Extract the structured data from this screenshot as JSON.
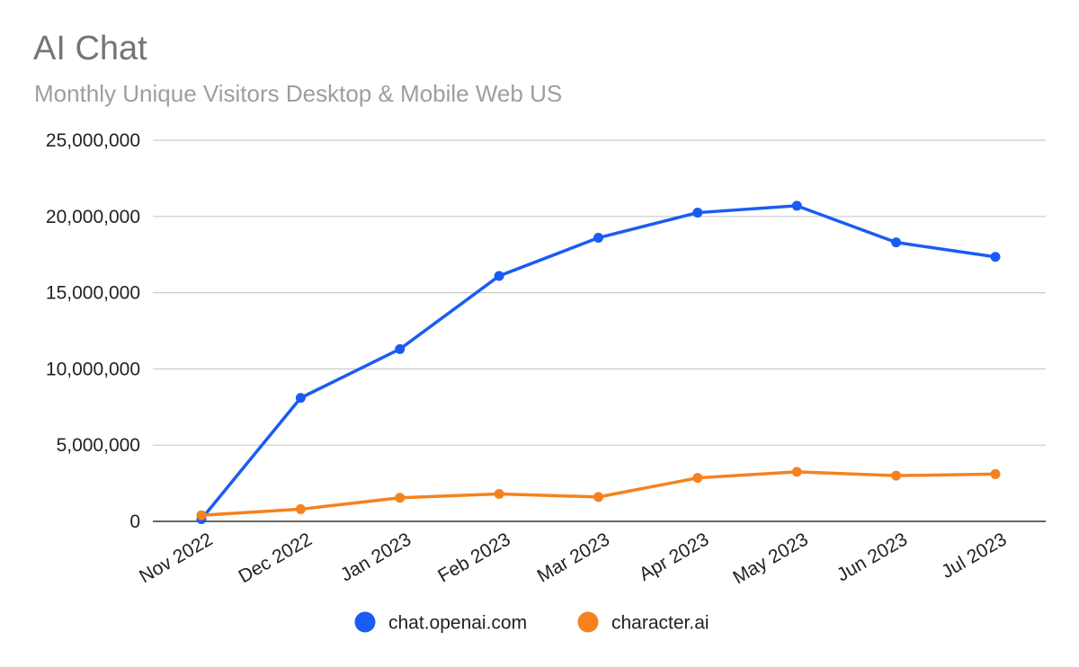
{
  "chart_data": {
    "type": "line",
    "title": "AI Chat",
    "subtitle": "Monthly Unique Visitors Desktop & Mobile Web US",
    "xlabel": "",
    "ylabel": "",
    "categories": [
      "Nov 2022",
      "Dec 2022",
      "Jan 2023",
      "Feb 2023",
      "Mar 2023",
      "Apr 2023",
      "May 2023",
      "Jun 2023",
      "Jul 2023"
    ],
    "ylim": [
      0,
      25000000
    ],
    "yticks": [
      0,
      5000000,
      10000000,
      15000000,
      20000000,
      25000000
    ],
    "ytick_labels": [
      "0",
      "5,000,000",
      "10,000,000",
      "15,000,000",
      "20,000,000",
      "25,000,000"
    ],
    "grid": true,
    "legend_position": "bottom",
    "series": [
      {
        "name": "chat.openai.com",
        "color": "#1a5cf3",
        "values": [
          150000,
          8100000,
          11300000,
          16100000,
          18600000,
          20250000,
          20700000,
          18300000,
          17350000
        ]
      },
      {
        "name": "character.ai",
        "color": "#f5821f",
        "values": [
          400000,
          800000,
          1550000,
          1800000,
          1600000,
          2850000,
          3250000,
          3000000,
          3100000
        ]
      }
    ]
  }
}
